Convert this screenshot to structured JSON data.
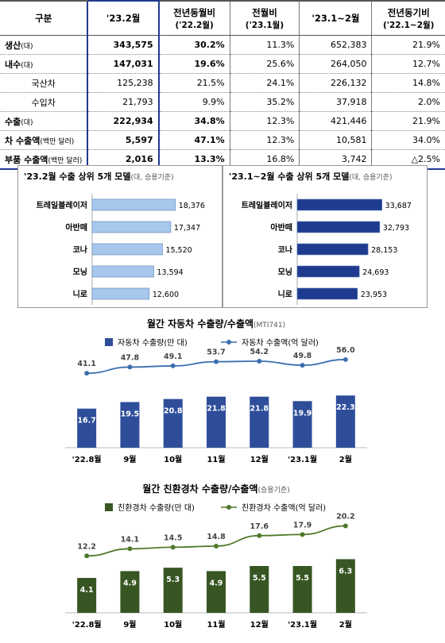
{
  "table": {
    "headers": [
      {
        "label": "구분",
        "sub": ""
      },
      {
        "label": "'23.2월",
        "sub": ""
      },
      {
        "label": "전년동월비",
        "sub": "('22.2월)"
      },
      {
        "label": "전월비",
        "sub": "('23.1월)"
      },
      {
        "label": "'23.1~2월",
        "sub": ""
      },
      {
        "label": "전년동기비",
        "sub": "('22.1~2월)"
      }
    ],
    "rows": [
      {
        "label": "생산",
        "unit": "(대)",
        "sub": false,
        "bold": true,
        "cells": [
          "343,575",
          "30.2%",
          "11.3%",
          "652,383",
          "21.9%"
        ]
      },
      {
        "label": "내수",
        "unit": "(대)",
        "sub": false,
        "bold": true,
        "cells": [
          "147,031",
          "19.6%",
          "25.6%",
          "264,050",
          "12.7%"
        ]
      },
      {
        "label": "국산차",
        "unit": "",
        "sub": true,
        "bold": false,
        "cells": [
          "125,238",
          "21.5%",
          "24.1%",
          "226,132",
          "14.8%"
        ]
      },
      {
        "label": "수입차",
        "unit": "",
        "sub": true,
        "bold": false,
        "cells": [
          "21,793",
          "9.9%",
          "35.2%",
          "37,918",
          "2.0%"
        ]
      },
      {
        "label": "수출",
        "unit": "(대)",
        "sub": false,
        "bold": true,
        "cells": [
          "222,934",
          "34.8%",
          "12.3%",
          "421,446",
          "21.9%"
        ]
      },
      {
        "label": "차 수출액",
        "unit": "(백만 달러)",
        "sub": false,
        "bold": true,
        "cells": [
          "5,597",
          "47.1%",
          "12.3%",
          "10,581",
          "34.0%"
        ]
      },
      {
        "label": "부품 수출액",
        "unit": "(백만 달러)",
        "sub": false,
        "bold": true,
        "cells": [
          "2,016",
          "13.3%",
          "16.8%",
          "3,742",
          "△2.5%"
        ]
      }
    ]
  },
  "chart_data": [
    {
      "type": "bar",
      "orientation": "horizontal",
      "title": "'23.2월 수출 상위 5개 모델",
      "title_note": "(대, 승용기준)",
      "categories": [
        "트레일블레이저",
        "아반떼",
        "코나",
        "모닝",
        "니로"
      ],
      "values": [
        18376,
        17347,
        15520,
        13594,
        12600
      ],
      "value_labels": [
        "18,376",
        "17,347",
        "15,520",
        "13,594",
        "12,600"
      ],
      "xlim": [
        0,
        20000
      ],
      "color": "#a6c8ec"
    },
    {
      "type": "bar",
      "orientation": "horizontal",
      "title": "'23.1~2월 수출 상위 5개 모델",
      "title_note": "(대, 승용기준)",
      "categories": [
        "트레일블레이저",
        "아반떼",
        "코나",
        "모닝",
        "니로"
      ],
      "values": [
        33687,
        32793,
        28153,
        24693,
        23953
      ],
      "value_labels": [
        "33,687",
        "32,793",
        "28,153",
        "24,693",
        "23,953"
      ],
      "xlim": [
        0,
        36000
      ],
      "color": "#1f3b8f"
    },
    {
      "type": "bar+line",
      "title": "월간 자동차 수출량/수출액",
      "title_note": "(MTI741)",
      "categories": [
        "'22.8월",
        "9월",
        "10월",
        "11월",
        "12월",
        "'23.1월",
        "2월"
      ],
      "series": [
        {
          "name": "자동차 수출량(만 대)",
          "type": "bar",
          "values": [
            16.7,
            19.5,
            20.8,
            21.8,
            21.8,
            19.9,
            22.3
          ]
        },
        {
          "name": "자동차 수출액(억 달러)",
          "type": "line",
          "values": [
            41.1,
            47.8,
            49.1,
            53.7,
            54.2,
            49.8,
            56.0
          ]
        }
      ],
      "bar_ylim": [
        0,
        40
      ],
      "line_ylim": [
        -40,
        62
      ],
      "bar_color": "#2e4e9a",
      "line_color": "#3b6fb0",
      "bar_label_color": "#ffffff",
      "line_label_color": "#444444"
    },
    {
      "type": "bar+line",
      "title": "월간 친환경차 수출량/수출액",
      "title_note": "(승용기준)",
      "categories": [
        "'22.8월",
        "9월",
        "10월",
        "11월",
        "12월",
        "'23.1월",
        "2월"
      ],
      "series": [
        {
          "name": "친환경차 수출량(만 대)",
          "type": "bar",
          "values": [
            4.1,
            4.9,
            5.3,
            4.9,
            5.5,
            5.5,
            6.3
          ]
        },
        {
          "name": "친환경차 수출액(억 달러)",
          "type": "line",
          "values": [
            12.2,
            14.1,
            14.5,
            14.8,
            17.6,
            17.9,
            20.2
          ]
        }
      ],
      "bar_ylim": [
        0,
        11
      ],
      "line_ylim": [
        -3,
        22
      ],
      "bar_color": "#375623",
      "line_color": "#4f7a2a",
      "bar_label_color": "#ffffff",
      "line_label_color": "#444444"
    }
  ]
}
